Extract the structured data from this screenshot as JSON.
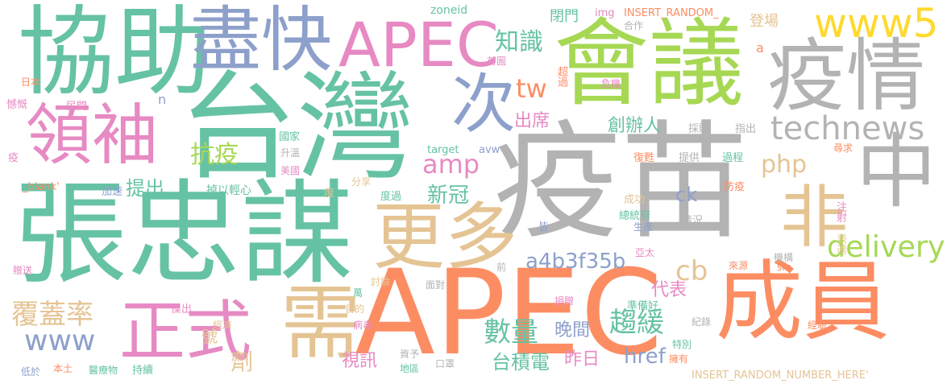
{
  "palette": {
    "green": "#66c2a5",
    "orange": "#fc8d62",
    "blue": "#8da0cb",
    "pink": "#e78ac3",
    "lime": "#a6d854",
    "yellow": "#ffd92f",
    "tan": "#e5c494",
    "gray": "#b3b3b3"
  },
  "words": [
    {
      "text": "疫苗"
    },
    {
      "text": "台灣"
    },
    {
      "text": "張忠謀"
    },
    {
      "text": "APEC"
    },
    {
      "text": "成員"
    },
    {
      "text": "會議"
    },
    {
      "text": "協助"
    },
    {
      "text": "疫情"
    },
    {
      "text": "盡快"
    },
    {
      "text": "APEC"
    },
    {
      "text": "中"
    },
    {
      "text": "更多"
    },
    {
      "text": "次"
    },
    {
      "text": "領袖"
    },
    {
      "text": "需"
    },
    {
      "text": "正式"
    },
    {
      "text": "非"
    },
    {
      "text": "www5"
    },
    {
      "text": "technews"
    },
    {
      "text": "delivery"
    },
    {
      "text": "抗疫"
    },
    {
      "text": "知識"
    },
    {
      "text": "amp"
    },
    {
      "text": "tw"
    },
    {
      "text": "php"
    },
    {
      "text": "數量"
    },
    {
      "text": "趨緩"
    },
    {
      "text": "覆蓋率"
    },
    {
      "text": "www"
    },
    {
      "text": "cb"
    },
    {
      "text": "a4b3f35b"
    },
    {
      "text": "新冠"
    },
    {
      "text": "台積電"
    },
    {
      "text": "創辦人"
    },
    {
      "text": "提出"
    },
    {
      "text": "出席"
    },
    {
      "text": "代表"
    },
    {
      "text": "晚間"
    },
    {
      "text": "昨日"
    },
    {
      "text": "視訊"
    },
    {
      "text": "劑"
    },
    {
      "text": "href"
    },
    {
      "text": "ck"
    },
    {
      "text": "閉門"
    },
    {
      "text": "登場"
    },
    {
      "text": "號"
    },
    {
      "text": "zoneid"
    },
    {
      "text": "img"
    },
    {
      "text": "INSERT_RANDOM_"
    },
    {
      "text": "INSERT_RANDOM_NUMBER_HERE'"
    },
    {
      "text": "合作"
    },
    {
      "text": "首圖"
    },
    {
      "text": "超過"
    },
    {
      "text": "危機"
    },
    {
      "text": "日本"
    },
    {
      "text": "憾慨"
    },
    {
      "text": "民間"
    },
    {
      "text": "n"
    },
    {
      "text": "a"
    },
    {
      "text": "國家"
    },
    {
      "text": "升溫"
    },
    {
      "text": "美國"
    },
    {
      "text": "target"
    },
    {
      "text": "avw"
    },
    {
      "text": "疫"
    },
    {
      "text": "_blank'"
    },
    {
      "text": "加速"
    },
    {
      "text": "掉以輕心"
    },
    {
      "text": "度"
    },
    {
      "text": "分享"
    },
    {
      "text": "度過"
    },
    {
      "text": "採購"
    },
    {
      "text": "指出"
    },
    {
      "text": "提供"
    },
    {
      "text": "過程"
    },
    {
      "text": "尋求"
    },
    {
      "text": "復甦"
    },
    {
      "text": "防疫"
    },
    {
      "text": "成功"
    },
    {
      "text": "總統府"
    },
    {
      "text": "生產"
    },
    {
      "text": "皆"
    },
    {
      "text": "情況"
    },
    {
      "text": "注射"
    },
    {
      "text": "表達"
    },
    {
      "text": "亞太"
    },
    {
      "text": "機構"
    },
    {
      "text": "來源"
    },
    {
      "text": "src"
    },
    {
      "text": "前"
    },
    {
      "text": "贈送"
    },
    {
      "text": "討論"
    },
    {
      "text": "面對"
    },
    {
      "text": "萬"
    },
    {
      "text": "目的"
    },
    {
      "text": "傑出"
    },
    {
      "text": "經濟"
    },
    {
      "text": "病毒"
    },
    {
      "text": "捐贈"
    },
    {
      "text": "準備好"
    },
    {
      "text": "紀錄"
    },
    {
      "text": "經驗"
    },
    {
      "text": "資予"
    },
    {
      "text": "特別"
    },
    {
      "text": "擁有"
    },
    {
      "text": "低於"
    },
    {
      "text": "本土"
    },
    {
      "text": "醫療物"
    },
    {
      "text": "持續"
    },
    {
      "text": "地區"
    },
    {
      "text": "口罩"
    }
  ]
}
